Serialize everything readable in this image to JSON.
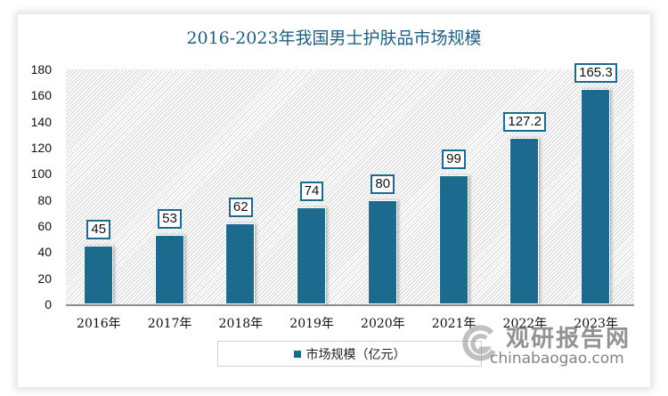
{
  "chart_data": {
    "type": "bar",
    "title": "2016-2023年我国男士护肤品市场规模",
    "categories": [
      "2016年",
      "2017年",
      "2018年",
      "2019年",
      "2020年",
      "2021年",
      "2022年",
      "2023年"
    ],
    "series": [
      {
        "name": "市场规模（亿元）",
        "values": [
          45,
          53,
          62,
          74,
          80,
          99,
          127.2,
          165.3
        ],
        "color": "#1c6a8e"
      }
    ],
    "data_labels": [
      "45",
      "53",
      "62",
      "74",
      "80",
      "99",
      "127.2",
      "165.3"
    ],
    "xlabel": "",
    "ylabel": "",
    "ylim": [
      0,
      180
    ],
    "yticks": [
      "0",
      "20",
      "40",
      "60",
      "80",
      "100",
      "120",
      "140",
      "160",
      "180"
    ],
    "grid": false,
    "legend_position": "bottom"
  },
  "watermark": {
    "cn": "观研报告网",
    "en": "chinabaogao.com"
  }
}
